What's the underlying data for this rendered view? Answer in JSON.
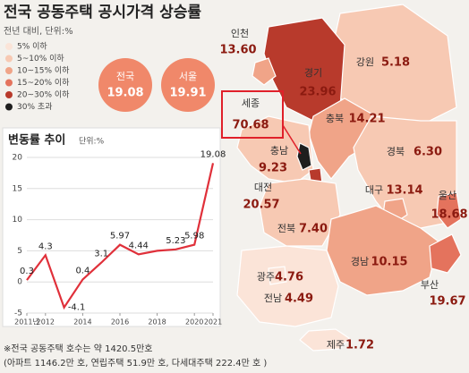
{
  "header": {
    "title": "전국 공동주택 공시가격 상승률",
    "subtitle": "전년 대비, 단위:%"
  },
  "legend": [
    {
      "label": "5% 이하",
      "color": "#fbe4d8"
    },
    {
      "label": "5~10% 이하",
      "color": "#f7c9b3"
    },
    {
      "label": "10~15% 이하",
      "color": "#f0a488"
    },
    {
      "label": "15~20% 이하",
      "color": "#e4735d"
    },
    {
      "label": "20~30% 이하",
      "color": "#b83a2c"
    },
    {
      "label": "30% 초과",
      "color": "#1e1e1e"
    }
  ],
  "callouts": [
    {
      "name": "전국",
      "value": "19.08",
      "color": "#f0886a"
    },
    {
      "name": "서울",
      "value": "19.91",
      "color": "#f0886a"
    }
  ],
  "regions": [
    {
      "name": "강원",
      "value": "5.18",
      "color": "#f7c9b3"
    },
    {
      "name": "경기",
      "value": "23.96",
      "color": "#b83a2c"
    },
    {
      "name": "인천",
      "value": "13.60",
      "color": "#f0a488"
    },
    {
      "name": "충북",
      "value": "14.21",
      "color": "#f0a488"
    },
    {
      "name": "충남",
      "value": "9.23",
      "color": "#f7c9b3"
    },
    {
      "name": "세종",
      "value": "70.68",
      "color": "#1e1e1e"
    },
    {
      "name": "대전",
      "value": "20.57",
      "color": "#b83a2c"
    },
    {
      "name": "경북",
      "value": "6.30",
      "color": "#f7c9b3"
    },
    {
      "name": "대구",
      "value": "13.14",
      "color": "#f0a488"
    },
    {
      "name": "울산",
      "value": "18.68",
      "color": "#e4735d"
    },
    {
      "name": "전북",
      "value": "7.40",
      "color": "#f7c9b3"
    },
    {
      "name": "경남",
      "value": "10.15",
      "color": "#f0a488"
    },
    {
      "name": "부산",
      "value": "19.67",
      "color": "#e4735d"
    },
    {
      "name": "전남",
      "value": "4.49",
      "color": "#fbe4d8"
    },
    {
      "name": "광주",
      "value": "4.76",
      "color": "#fbe4d8"
    },
    {
      "name": "제주",
      "value": "1.72",
      "color": "#fbe4d8"
    }
  ],
  "chart_data": {
    "type": "line",
    "title": "변동률 추이",
    "unit": "단위:%",
    "color": "#e0303a",
    "x": [
      2011,
      2012,
      2013,
      2014,
      2015,
      2016,
      2017,
      2018,
      2019,
      2020,
      2021
    ],
    "values": [
      0.3,
      4.3,
      -4.1,
      0.4,
      3.1,
      5.97,
      4.44,
      5.0,
      5.23,
      5.98,
      19.08
    ],
    "value_labels": [
      "0.3",
      "4.3",
      "-4.1",
      "0.4",
      "3.1",
      "5.97",
      "4.44",
      null,
      "5.23",
      "5.98",
      "19.08"
    ],
    "xlim": [
      2011,
      2021
    ],
    "ylim": [
      -5,
      20
    ],
    "xticks": [
      {
        "value": 2011,
        "label": "2011년"
      },
      2012,
      2014,
      2016,
      2018,
      2020,
      2021
    ],
    "yticks": [
      -5,
      0,
      5,
      10,
      15,
      20
    ],
    "grid": true
  },
  "footnote": [
    "※전국 공동주택 호수는 약 1420.5만호",
    "(아파트 1146.2만 호, 연립주택 51.9만 호, 다세대주택 222.4만 호 )"
  ]
}
